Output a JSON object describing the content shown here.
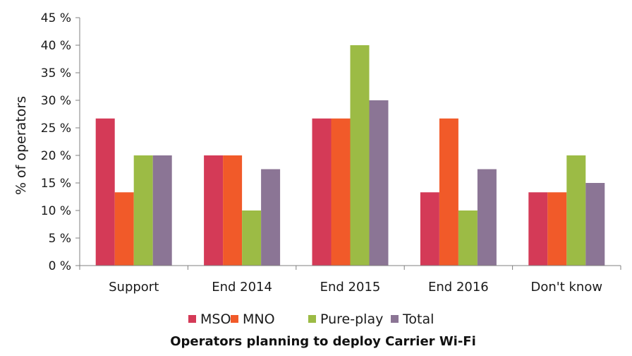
{
  "chart_data": {
    "type": "bar",
    "title": "Operators planning to deploy Carrier Wi-Fi",
    "xlabel": "",
    "ylabel": "% of operators",
    "ylim": [
      0,
      45
    ],
    "yticks": [
      0,
      5,
      10,
      15,
      20,
      25,
      30,
      35,
      40,
      45
    ],
    "ytick_labels": [
      "0 %",
      "5 %",
      "10 %",
      "15 %",
      "20 %",
      "25 %",
      "30 %",
      "35 %",
      "40 %",
      "45 %"
    ],
    "categories": [
      "Support",
      "End 2014",
      "End 2015",
      "End 2016",
      "Don't know"
    ],
    "series": [
      {
        "name": "MSO",
        "color": "#d43a57",
        "values": [
          26.7,
          20.0,
          26.7,
          13.3,
          13.3
        ]
      },
      {
        "name": "MNO",
        "color": "#f15a29",
        "values": [
          13.3,
          20.0,
          26.7,
          26.7,
          13.3
        ]
      },
      {
        "name": "Pure-play",
        "color": "#9cbb45",
        "values": [
          20.0,
          10.0,
          40.0,
          10.0,
          20.0
        ]
      },
      {
        "name": "Total",
        "color": "#8b7595",
        "values": [
          20.0,
          17.5,
          30.0,
          17.5,
          15.0
        ]
      }
    ],
    "legend_position": "bottom",
    "grid": false
  }
}
